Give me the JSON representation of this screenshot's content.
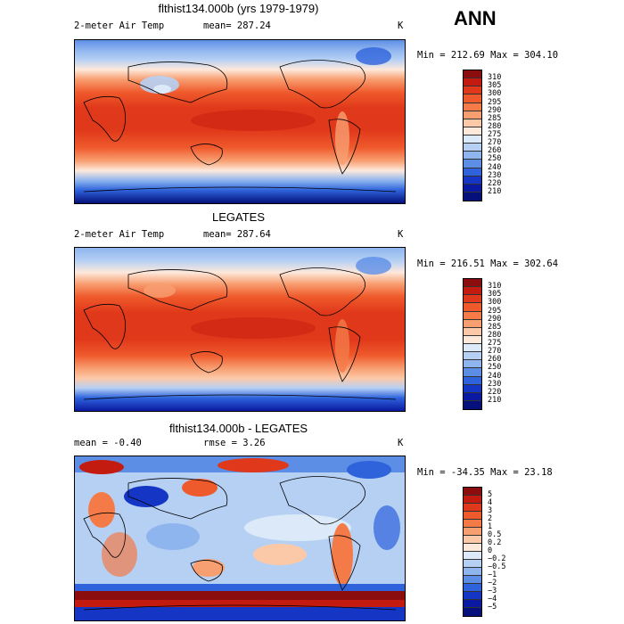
{
  "season": "ANN",
  "chart_data": [
    {
      "type": "heatmap",
      "title": "flthist134.000b (yrs 1979-1979)",
      "left_label": "2-meter Air Temp",
      "center_label": "mean= 287.24",
      "right_label": "K",
      "minmax_text": "Min = 212.69 Max = 304.10",
      "min": 212.69,
      "max": 304.1,
      "mean": 287.24,
      "colorbar": {
        "levels": [
          "310",
          "305",
          "300",
          "295",
          "290",
          "285",
          "280",
          "275",
          "270",
          "260",
          "250",
          "240",
          "230",
          "220",
          "210"
        ],
        "colors": [
          "#8b0d0d",
          "#c41b10",
          "#e0381a",
          "#ef5a2c",
          "#f47b48",
          "#f89f72",
          "#fcc9a8",
          "#fde9dc",
          "#dce9f8",
          "#b6d0f4",
          "#8fb5ef",
          "#5d8ee6",
          "#2e63dc",
          "#1536c4",
          "#0a1aa0",
          "#06107a"
        ]
      }
    },
    {
      "type": "heatmap",
      "title": "LEGATES",
      "left_label": "2-meter Air Temp",
      "center_label": "mean= 287.64",
      "right_label": "K",
      "minmax_text": "Min = 216.51 Max = 302.64",
      "min": 216.51,
      "max": 302.64,
      "mean": 287.64,
      "colorbar": {
        "levels": [
          "310",
          "305",
          "300",
          "295",
          "290",
          "285",
          "280",
          "275",
          "270",
          "260",
          "250",
          "240",
          "230",
          "220",
          "210"
        ],
        "colors": [
          "#8b0d0d",
          "#c41b10",
          "#e0381a",
          "#ef5a2c",
          "#f47b48",
          "#f89f72",
          "#fcc9a8",
          "#fde9dc",
          "#dce9f8",
          "#b6d0f4",
          "#8fb5ef",
          "#5d8ee6",
          "#2e63dc",
          "#1536c4",
          "#0a1aa0",
          "#06107a"
        ]
      }
    },
    {
      "type": "heatmap",
      "title": "flthist134.000b - LEGATES",
      "left_label": "mean =   -0.40",
      "center_label": "rmse =   3.26",
      "right_label": "K",
      "minmax_text": "Min = -34.35 Max =  23.18",
      "min": -34.35,
      "max": 23.18,
      "mean": -0.4,
      "rmse": 3.26,
      "colorbar": {
        "levels": [
          "5",
          "4",
          "3",
          "2",
          "1",
          "0.5",
          "0.2",
          "0",
          "−0.2",
          "−0.5",
          "−1",
          "−2",
          "−3",
          "−4",
          "−5"
        ],
        "colors": [
          "#8b0d0d",
          "#c41b10",
          "#e0381a",
          "#ef5a2c",
          "#f47b48",
          "#f89f72",
          "#fcc9a8",
          "#fde9dc",
          "#dce9f8",
          "#b6d0f4",
          "#8fb5ef",
          "#5d8ee6",
          "#2e63dc",
          "#1536c4",
          "#0a1aa0",
          "#06107a"
        ]
      }
    }
  ]
}
